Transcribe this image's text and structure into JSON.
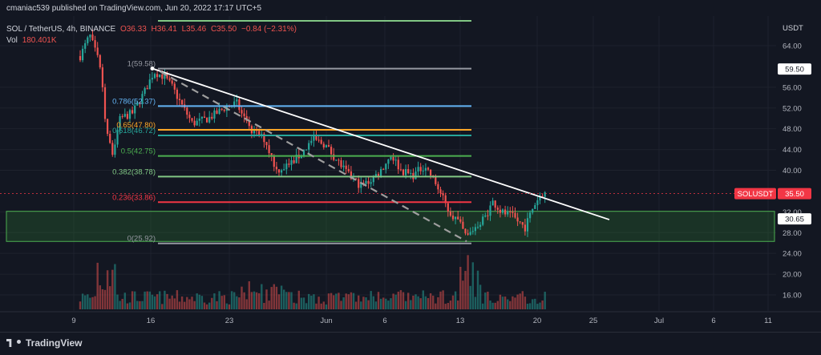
{
  "header": {
    "published": "cmaniac539 published on TradingView.com, Jun 20, 2022 17:17 UTC+5",
    "symbol": "SOL / TetherUS, 4h, BINANCE",
    "open": "O36.33",
    "high": "H36.41",
    "low": "L35.46",
    "close": "C35.50",
    "change": "−0.84 (−2.31%)",
    "vol_label": "Vol",
    "vol_value": "180.401K"
  },
  "axis": {
    "currency": "USDT",
    "ticks": [
      "64.00",
      "56.00",
      "52.00",
      "48.00",
      "44.00",
      "40.00",
      "32.00",
      "28.00",
      "24.00",
      "20.00",
      "16.00"
    ],
    "tick_values": [
      64,
      56,
      52,
      48,
      44,
      40,
      32,
      28,
      24,
      20,
      16
    ],
    "price_badge": {
      "label": "59.50",
      "value": 59.5
    },
    "symbol_badge": {
      "label": "SOLUSDT",
      "price": "35.50",
      "value": 35.5
    },
    "support_badge": {
      "label": "30.65",
      "value": 30.65
    }
  },
  "time_axis": {
    "labels": [
      "9",
      "16",
      "23",
      "Jun",
      "6",
      "13",
      "20",
      "25",
      "Jul",
      "6",
      "11"
    ]
  },
  "fib": [
    {
      "label": "1(59.58)",
      "value": 59.58,
      "color": "#9598a1"
    },
    {
      "label": "0.786(52.37)",
      "value": 52.37,
      "color": "#64b5f6"
    },
    {
      "label": "0.65(47.80)",
      "value": 47.8,
      "color": "#ffa726"
    },
    {
      "label": "0.618(46.72)",
      "value": 46.72,
      "color": "#26a69a"
    },
    {
      "label": "0.5(42.75)",
      "value": 42.75,
      "color": "#4caf50"
    },
    {
      "label": "0.382(38.78)",
      "value": 38.78,
      "color": "#81c784"
    },
    {
      "label": "0.236(33.86)",
      "value": 33.86,
      "color": "#f23645"
    },
    {
      "label": "0(25.92)",
      "value": 25.92,
      "color": "#9598a1"
    }
  ],
  "colors": {
    "up": "#26a69a",
    "down": "#ef5350",
    "bg": "#131722",
    "zone": "#2e7d32",
    "trend": "#ffffff"
  },
  "footer": {
    "brand": "TradingView"
  }
}
